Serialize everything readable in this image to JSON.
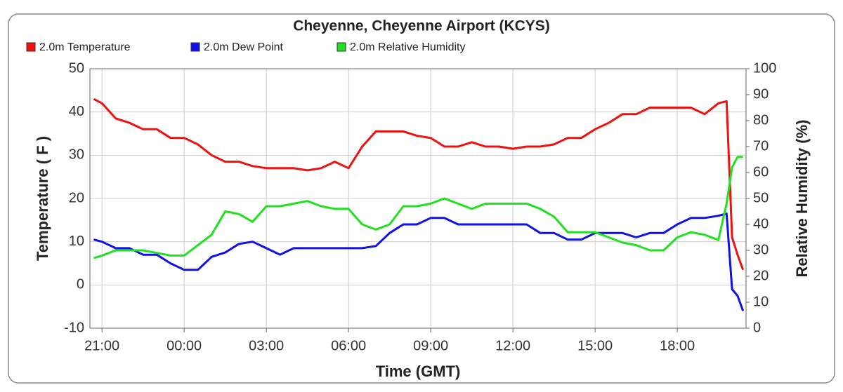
{
  "chart_data": {
    "type": "line",
    "title": "Cheyenne, Cheyenne Airport (KCYS)",
    "x_label": "Time (GMT)",
    "y_label": "Temperature ( F )",
    "y2_label": "Relative Humidity (%)",
    "x": [
      20.7,
      21,
      21.5,
      22,
      22.5,
      23,
      23.5,
      24,
      24.5,
      25,
      25.5,
      26,
      26.5,
      27,
      27.5,
      28,
      28.5,
      29,
      29.5,
      30,
      30.5,
      31,
      31.5,
      32,
      32.5,
      33,
      33.5,
      34,
      34.5,
      35,
      35.5,
      36,
      36.5,
      37,
      37.5,
      38,
      38.5,
      39,
      39.5,
      40,
      40.5,
      41,
      41.5,
      42,
      42.5,
      43,
      43.5,
      43.8,
      44.0,
      44.2,
      44.4
    ],
    "series": [
      {
        "name": "2.0m Temperature",
        "color": "#f01010",
        "axis": "y",
        "values": [
          43,
          42,
          38.5,
          37.5,
          36,
          36,
          34,
          34,
          32.5,
          30,
          28.5,
          28.5,
          27.5,
          27,
          27,
          27,
          26.5,
          27,
          28.5,
          27,
          32,
          35.5,
          35.5,
          35.5,
          34.5,
          34,
          32,
          32,
          33,
          32,
          32,
          31.5,
          32,
          32,
          32.5,
          34,
          34,
          36,
          37.5,
          39.5,
          39.5,
          41,
          41,
          41,
          41,
          39.5,
          42,
          42.5,
          11,
          7,
          3.5
        ]
      },
      {
        "name": "2.0m Dew Point",
        "color": "#1010e8",
        "axis": "y",
        "values": [
          10.5,
          10,
          8.5,
          8.5,
          7,
          7,
          5,
          3.5,
          3.5,
          6.5,
          7.5,
          9.5,
          10,
          8.5,
          7,
          8.5,
          8.5,
          8.5,
          8.5,
          8.5,
          8.5,
          9,
          12,
          14,
          14,
          15.5,
          15.5,
          14,
          14,
          14,
          14,
          14,
          14,
          12,
          12,
          10.5,
          10.5,
          12,
          12,
          12,
          11,
          12,
          12,
          14,
          15.5,
          15.5,
          16,
          16.5,
          -1,
          -2.5,
          -6
        ]
      },
      {
        "name": "2.0m Relative Humidity",
        "color": "#20e020",
        "axis": "y2",
        "values": [
          27,
          28,
          30,
          30,
          30,
          29,
          28,
          28,
          32,
          36,
          45,
          44,
          41,
          47,
          47,
          48,
          49,
          47,
          46,
          46,
          40,
          38,
          40,
          47,
          47,
          48,
          50,
          48,
          46,
          48,
          48,
          48,
          48,
          46,
          43,
          37,
          37,
          37,
          35,
          33,
          32,
          30,
          30,
          35,
          37,
          36,
          34,
          48,
          62,
          66,
          66
        ]
      }
    ],
    "xlim": [
      20.56,
      44.51
    ],
    "ylim": [
      -10,
      50
    ],
    "y2lim": [
      0,
      100
    ],
    "xticks": [
      {
        "value": 21,
        "label": "21:00"
      },
      {
        "value": 24,
        "label": "00:00"
      },
      {
        "value": 27,
        "label": "03:00"
      },
      {
        "value": 30,
        "label": "06:00"
      },
      {
        "value": 33,
        "label": "09:00"
      },
      {
        "value": 36,
        "label": "12:00"
      },
      {
        "value": 39,
        "label": "15:00"
      },
      {
        "value": 42,
        "label": "18:00"
      }
    ],
    "yticks": [
      -10,
      0,
      10,
      20,
      30,
      40,
      50
    ],
    "y2ticks": [
      0,
      10,
      20,
      30,
      40,
      50,
      60,
      70,
      80,
      90,
      100
    ],
    "grid": true,
    "legend": "top-left"
  }
}
